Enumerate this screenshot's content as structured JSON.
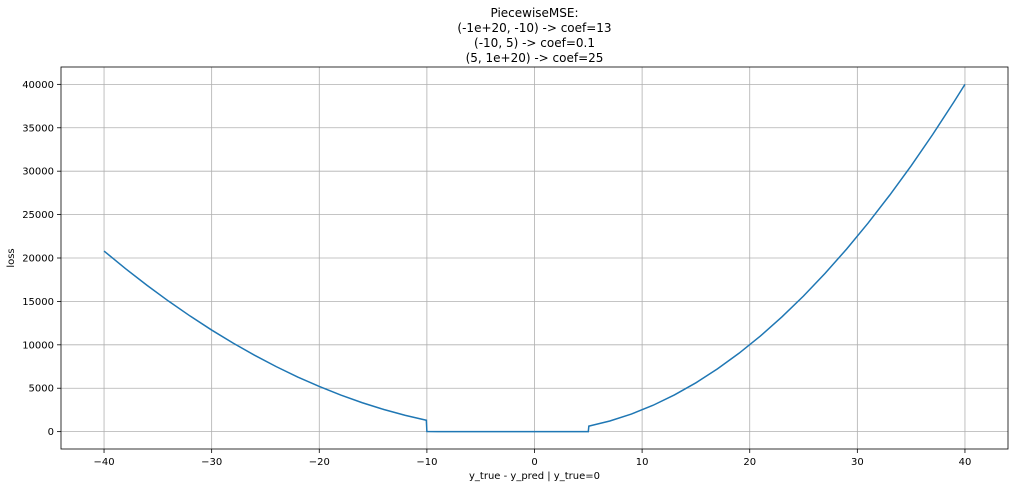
{
  "chart_data": {
    "type": "line",
    "title_lines": [
      "PiecewiseMSE:",
      "(-1e+20, -10) -> coef=13",
      "(-10, 5) -> coef=0.1",
      "(5, 1e+20) -> coef=25"
    ],
    "xlabel": "y_true - y_pred | y_true=0",
    "ylabel": "loss",
    "xlim": [
      -44,
      44
    ],
    "ylim": [
      -2000,
      42000
    ],
    "xticks": [
      -40,
      -30,
      -20,
      -10,
      0,
      10,
      20,
      30,
      40
    ],
    "xtick_labels": [
      "−40",
      "−30",
      "−20",
      "−10",
      "0",
      "10",
      "20",
      "30",
      "40"
    ],
    "yticks": [
      0,
      5000,
      10000,
      15000,
      20000,
      25000,
      30000,
      35000,
      40000
    ],
    "ytick_labels": [
      "0",
      "5000",
      "10000",
      "15000",
      "20000",
      "25000",
      "30000",
      "35000",
      "40000"
    ],
    "grid": true,
    "series": [
      {
        "color": "#1f77b4",
        "x": [
          -40,
          -38,
          -36,
          -34,
          -32,
          -30,
          -28,
          -26,
          -24,
          -22,
          -20,
          -18,
          -16,
          -14,
          -12,
          -10.05,
          -10,
          -9,
          -7,
          -5,
          -3,
          -1,
          0,
          1,
          3,
          5,
          5.05,
          7,
          9,
          11,
          13,
          15,
          17,
          19,
          21,
          23,
          25,
          27,
          29,
          31,
          33,
          35,
          37,
          39,
          40
        ],
        "y": [
          20800,
          18772,
          16848,
          15028,
          13312,
          11700,
          10192,
          8788,
          7488,
          6292,
          5200,
          4212,
          3328,
          2548,
          1872,
          1313,
          10,
          8.1,
          4.9,
          2.5,
          0.9,
          0.1,
          0,
          0.1,
          0.9,
          2.5,
          638,
          1225,
          2025,
          3025,
          4225,
          5625,
          7225,
          9025,
          11025,
          13225,
          15625,
          18225,
          21025,
          24025,
          27225,
          30625,
          34225,
          38025,
          40000
        ]
      }
    ]
  }
}
